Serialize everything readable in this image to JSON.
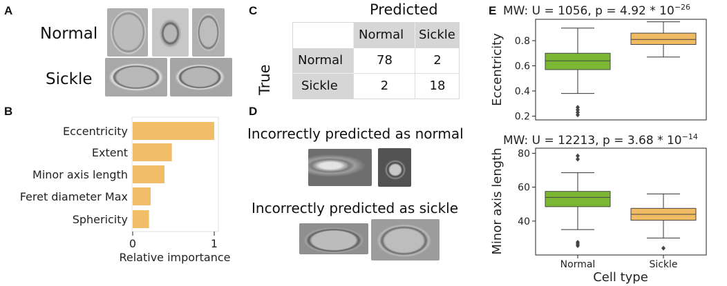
{
  "panel_labels": {
    "a": "A",
    "b": "B",
    "c": "C",
    "d": "D",
    "e": "E"
  },
  "panel_a": {
    "row1": "Normal",
    "row2": "Sickle"
  },
  "panel_c": {
    "col_title": "Predicted",
    "row_title": "True",
    "columns": [
      "Normal",
      "Sickle"
    ],
    "rows": [
      {
        "label": "Normal",
        "values": [
          "78",
          "2"
        ]
      },
      {
        "label": "Sickle",
        "values": [
          "2",
          "18"
        ]
      }
    ]
  },
  "panel_d": {
    "caption1": "Incorrectly predicted as normal",
    "caption2": "Incorrectly predicted as sickle"
  },
  "colors": {
    "bar": "#f2bd68",
    "green": "#7cb733",
    "orange": "#f0bb62"
  },
  "chart_data": [
    {
      "type": "bar",
      "orientation": "horizontal",
      "categories": [
        "Eccentricity",
        "Extent",
        "Minor axis length",
        "Feret diameter Max",
        "Sphericity"
      ],
      "values": [
        1.0,
        0.48,
        0.39,
        0.22,
        0.2
      ],
      "xlabel": "Relative importance",
      "xlim": [
        0,
        1.05
      ],
      "xticks": [
        "0",
        "1"
      ]
    },
    {
      "type": "box",
      "title": "MW: U = 1056, p = 4.92 * 10",
      "title_exp": "−26",
      "ylabel": "Eccentricity",
      "ylim": [
        0.17,
        0.97
      ],
      "yticks": [
        "0.2",
        "0.4",
        "0.6",
        "0.8"
      ],
      "categories": [
        "Normal",
        "Sickle"
      ],
      "boxes": [
        {
          "q1": 0.57,
          "median": 0.64,
          "q3": 0.7,
          "whisker_low": 0.38,
          "whisker_high": 0.9,
          "outliers": [
            0.27,
            0.25,
            0.23,
            0.21
          ]
        },
        {
          "q1": 0.77,
          "median": 0.81,
          "q3": 0.86,
          "whisker_low": 0.67,
          "whisker_high": 0.95,
          "outliers": []
        }
      ]
    },
    {
      "type": "box",
      "title": "MW: U = 12213, p = 3.68 * 10",
      "title_exp": "−14",
      "ylabel": "Minor axis length",
      "xlabel": "Cell type",
      "ylim": [
        20,
        83
      ],
      "yticks": [
        "40",
        "60",
        "80"
      ],
      "categories": [
        "Normal",
        "Sickle"
      ],
      "boxes": [
        {
          "q1": 48.5,
          "median": 54,
          "q3": 57.5,
          "whisker_low": 35,
          "whisker_high": 68.5,
          "outliers": [
            78.5,
            76.5,
            27.5,
            26.5,
            25.5
          ]
        },
        {
          "q1": 40.5,
          "median": 44,
          "q3": 47.5,
          "whisker_low": 30,
          "whisker_high": 56,
          "outliers": [
            24
          ]
        }
      ]
    }
  ]
}
